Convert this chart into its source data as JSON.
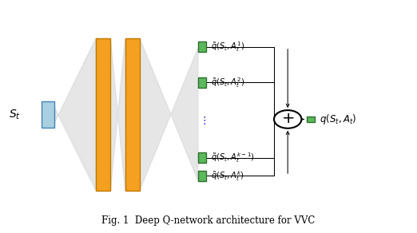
{
  "title": "Fig. 1  Deep Q-network architecture for VVC",
  "background_color": "#ffffff",
  "light_gray": "#d3d3d3",
  "orange_color": "#f5a020",
  "blue_color": "#a8d0e0",
  "green_color": "#5cb85c",
  "dark_green": "#2d6e2d",
  "q_labels": [
    "\\tilde{q}(S_t, A_t^1)",
    "\\tilde{q}(S_t, A_t^2)",
    "\\tilde{q}(S_t, A_t^{k-1})",
    "\\tilde{q}(S_t, A_t^k)"
  ]
}
